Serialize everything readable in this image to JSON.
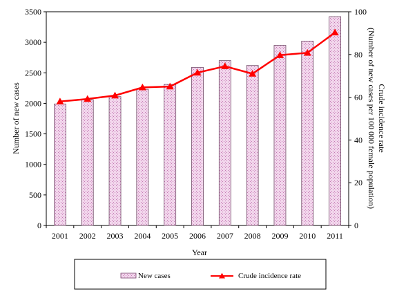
{
  "chart_data": {
    "type": "bar",
    "categories": [
      "2001",
      "2002",
      "2003",
      "2004",
      "2005",
      "2006",
      "2007",
      "2008",
      "2009",
      "2010",
      "2011"
    ],
    "series": [
      {
        "name": "New cases",
        "type": "bar",
        "axis": "left",
        "values": [
          1990,
          2060,
          2110,
          2230,
          2310,
          2590,
          2700,
          2620,
          2950,
          3020,
          3420
        ]
      },
      {
        "name": "Crude incidence rate",
        "type": "line",
        "axis": "right",
        "values": [
          58,
          59.2,
          60.8,
          64.6,
          65,
          71.5,
          74.5,
          71,
          79.7,
          80.8,
          90.3
        ]
      }
    ],
    "xlabel": "Year",
    "ylabel": "Number of new cases",
    "y2label_line1": "Crude incidence  rate",
    "y2label_line2": "(Number of new cases per 100 000 female population)",
    "ylim": [
      0,
      3500
    ],
    "y2lim": [
      0,
      100
    ],
    "yticks": [
      "0",
      "500",
      "1000",
      "1500",
      "2000",
      "2500",
      "3000",
      "3500"
    ],
    "y2ticks": [
      "0",
      "20",
      "40",
      "60",
      "80",
      "100"
    ],
    "bar_fill_color": "#f2d6ec",
    "bar_pattern_color": "#c47ab3",
    "line_color": "#ff0000",
    "legend": {
      "position": "bottom"
    }
  }
}
